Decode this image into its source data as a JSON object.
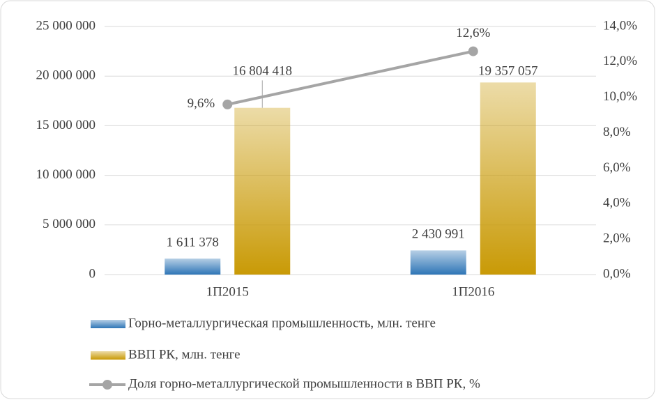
{
  "chart_data": {
    "type": "bar_line",
    "categories": [
      "1П2015",
      "1П2016"
    ],
    "series": [
      {
        "name": "Горно-металлургическая промышленность, млн. тенге",
        "color": "#2e75b6",
        "values": [
          1611378,
          2430991
        ],
        "value_labels": [
          "1 611 378",
          "2 430 991"
        ]
      },
      {
        "name": "ВВП РК, млн. тенге",
        "color": "#c99a06",
        "values": [
          16804418,
          19357057
        ],
        "value_labels": [
          "16 804 418",
          "19 357 057"
        ]
      },
      {
        "name": "Доля горно-металлургической промышленности в ВВП РК, %",
        "color": "#a5a5a5",
        "axis": "y2",
        "type": "line",
        "values": [
          9.6,
          12.6
        ],
        "value_labels": [
          "9,6%",
          "12,6%"
        ]
      }
    ],
    "ylim": [
      0,
      25000000
    ],
    "yticks": [
      0,
      {
        "value": 5000000,
        "label": "5 000 000"
      },
      {
        "value": 10000000,
        "label": "10 000 000"
      },
      {
        "value": 15000000,
        "label": "15 000 000"
      },
      {
        "value": 20000000,
        "label": "20 000 000"
      },
      {
        "value": 25000000,
        "label": "25 000 000"
      }
    ],
    "y2lim": [
      0,
      14
    ],
    "y2ticks": [
      {
        "value": 0,
        "label": "0,0%"
      },
      {
        "value": 2,
        "label": "2,0%"
      },
      {
        "value": 4,
        "label": "4,0%"
      },
      {
        "value": 6,
        "label": "6,0%"
      },
      {
        "value": 8,
        "label": "8,0%"
      },
      {
        "value": 10,
        "label": "10,0%"
      },
      {
        "value": 12,
        "label": "12,0%"
      },
      {
        "value": 14,
        "label": "14,0%"
      }
    ],
    "grid": true,
    "legend": "bottom"
  }
}
